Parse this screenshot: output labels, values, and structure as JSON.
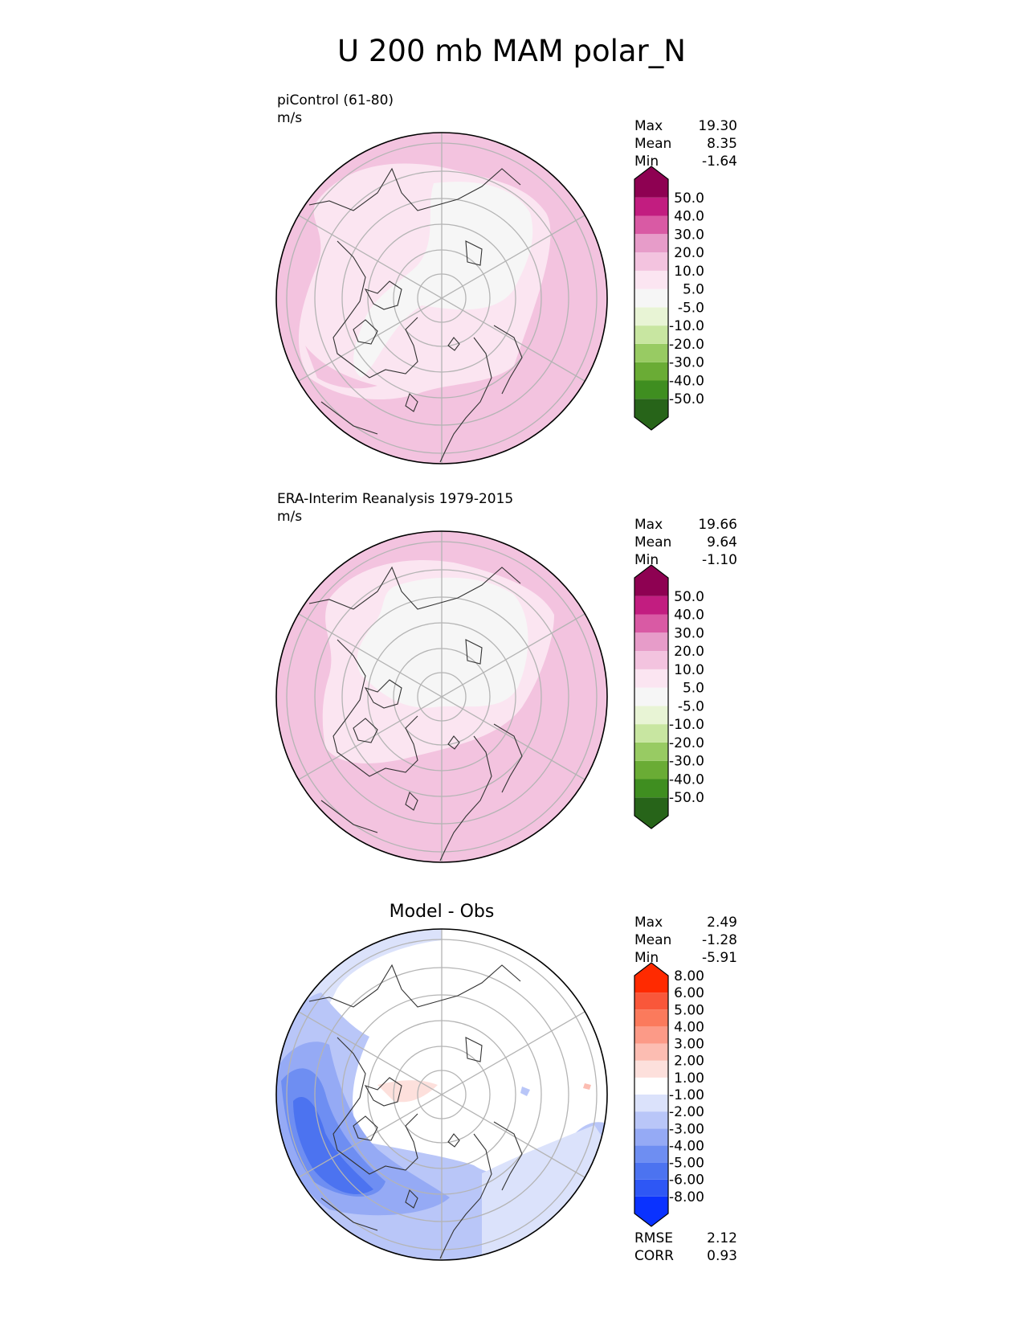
{
  "figure": {
    "title": "U 200 mb MAM polar_N"
  },
  "panels": [
    {
      "id": "test",
      "title": "piControl (61-80)",
      "units": "m/s",
      "center_title": "",
      "stats": [
        {
          "label": "Max",
          "value": "19.30"
        },
        {
          "label": "Mean",
          "value": "8.35"
        },
        {
          "label": "Min",
          "value": "-1.64"
        }
      ],
      "colorbar": {
        "colors": [
          "#276419",
          "#3f8e20",
          "#6aac35",
          "#98cb63",
          "#c8e6a1",
          "#e8f4d5",
          "#f6f6f6",
          "#fbe5f1",
          "#f3c3df",
          "#e79cc9",
          "#d95aa4",
          "#c21d80",
          "#8e0152"
        ],
        "labels": [
          "-50.0",
          "-40.0",
          "-30.0",
          "-20.0",
          "-10.0",
          "-5.0",
          "5.0",
          "10.0",
          "20.0",
          "30.0",
          "40.0",
          "50.0"
        ]
      },
      "footer_stats": []
    },
    {
      "id": "reference",
      "title": "ERA-Interim Reanalysis 1979-2015",
      "units": "m/s",
      "center_title": "",
      "stats": [
        {
          "label": "Max",
          "value": "19.66"
        },
        {
          "label": "Mean",
          "value": "9.64"
        },
        {
          "label": "Min",
          "value": "-1.10"
        }
      ],
      "colorbar": {
        "colors": [
          "#276419",
          "#3f8e20",
          "#6aac35",
          "#98cb63",
          "#c8e6a1",
          "#e8f4d5",
          "#f6f6f6",
          "#fbe5f1",
          "#f3c3df",
          "#e79cc9",
          "#d95aa4",
          "#c21d80",
          "#8e0152"
        ],
        "labels": [
          "-50.0",
          "-40.0",
          "-30.0",
          "-20.0",
          "-10.0",
          "-5.0",
          "5.0",
          "10.0",
          "20.0",
          "30.0",
          "40.0",
          "50.0"
        ]
      },
      "footer_stats": []
    },
    {
      "id": "diff",
      "title": "",
      "units": "",
      "center_title": "Model - Obs",
      "stats": [
        {
          "label": "Max",
          "value": "2.49"
        },
        {
          "label": "Mean",
          "value": "-1.28"
        },
        {
          "label": "Min",
          "value": "-5.91"
        }
      ],
      "colorbar": {
        "colors": [
          "#0a32ff",
          "#2e57f5",
          "#4c73f0",
          "#6e8ef2",
          "#95aaf5",
          "#b9c6f8",
          "#dbe2fb",
          "#ffffff",
          "#fde0dc",
          "#fcbdb2",
          "#fc9a87",
          "#fb7a5c",
          "#f9573a",
          "#ff2a00"
        ],
        "labels": [
          "-8.00",
          "-6.00",
          "-5.00",
          "-4.00",
          "-3.00",
          "-2.00",
          "-1.00",
          "1.00",
          "2.00",
          "3.00",
          "4.00",
          "5.00",
          "6.00",
          "8.00"
        ]
      },
      "footer_stats": [
        {
          "label": "RMSE",
          "value": "2.12"
        },
        {
          "label": "CORR",
          "value": "0.93"
        }
      ]
    }
  ],
  "chart_data": {
    "type": "heatmap",
    "title": "U 200 mb MAM polar_N",
    "projection": "north-polar-stereographic",
    "panels": [
      {
        "name": "piControl (61-80)",
        "units": "m/s",
        "max": 19.3,
        "mean": 8.35,
        "min": -1.64,
        "levels": [
          -50,
          -40,
          -30,
          -20,
          -10,
          -5,
          5,
          10,
          20,
          30,
          40,
          50
        ]
      },
      {
        "name": "ERA-Interim Reanalysis 1979-2015",
        "units": "m/s",
        "max": 19.66,
        "mean": 9.64,
        "min": -1.1,
        "levels": [
          -50,
          -40,
          -30,
          -20,
          -10,
          -5,
          5,
          10,
          20,
          30,
          40,
          50
        ]
      },
      {
        "name": "Model - Obs",
        "max": 2.49,
        "mean": -1.28,
        "min": -5.91,
        "rmse": 2.12,
        "corr": 0.93,
        "levels": [
          -8,
          -6,
          -5,
          -4,
          -3,
          -2,
          -1,
          1,
          2,
          3,
          4,
          5,
          6,
          8
        ]
      }
    ]
  }
}
